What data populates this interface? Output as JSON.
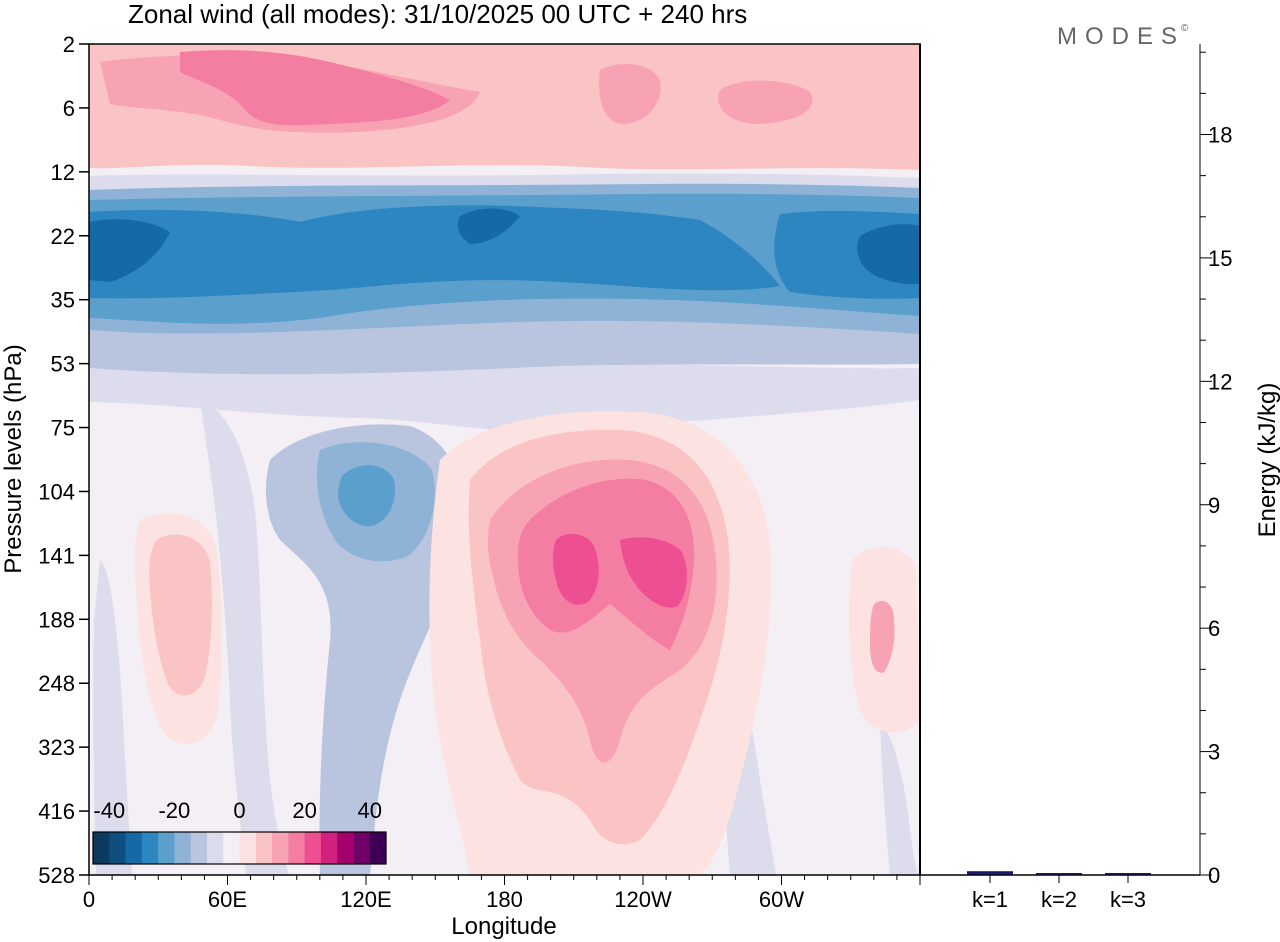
{
  "chart_data": [
    {
      "type": "heatmap",
      "title": "Zonal wind (all modes):  31/10/2025  00 UTC  + 240 hrs",
      "xlabel": "Longitude",
      "ylabel": "Pressure levels (hPa)",
      "x_ticks": [
        "0",
        "60E",
        "120E",
        "180",
        "120W",
        "60W"
      ],
      "y_ticks": [
        "2",
        "6",
        "12",
        "22",
        "35",
        "53",
        "75",
        "104",
        "141",
        "188",
        "248",
        "323",
        "416",
        "528"
      ],
      "colorbar": {
        "tick_labels": [
          "-40",
          "-20",
          "0",
          "20",
          "40"
        ],
        "colors": [
          "#0b3a5e",
          "#0e4f80",
          "#1569a5",
          "#2e86c1",
          "#5b9fcc",
          "#8fb3d6",
          "#b9c4df",
          "#dcdcec",
          "#f4eff5",
          "#fde2e2",
          "#fbc4c4",
          "#f8a3b3",
          "#f47ea2",
          "#ee4f92",
          "#d1207d",
          "#a4006c",
          "#6f0067",
          "#3d0055"
        ],
        "range": [
          -45,
          45
        ],
        "step": 5
      },
      "features": [
        {
          "name": "stratospheric easterly band",
          "value": -35,
          "pressure_range": [
            16,
            40
          ]
        },
        {
          "name": "upper westerly band",
          "value": 20,
          "pressure_range": [
            2,
            10
          ]
        },
        {
          "name": "upper tropospheric westerly maximum",
          "value": 30,
          "longitude": "160W",
          "pressure": 141
        },
        {
          "name": "easterly minimum",
          "value": -20,
          "longitude": "125E",
          "pressure": 104
        }
      ]
    },
    {
      "type": "bar",
      "ylabel": "Energy (kJ/kg)",
      "categories": [
        "k=1",
        "k=2",
        "k=3"
      ],
      "values": [
        0.08,
        0.03,
        0.01
      ],
      "ylim": [
        0,
        20.2
      ],
      "y_ticks": [
        "0",
        "3",
        "6",
        "9",
        "12",
        "15",
        "18"
      ],
      "bar_color": "#1a1a6e"
    }
  ],
  "watermark": {
    "text": "MODES",
    "symbol": "©"
  }
}
